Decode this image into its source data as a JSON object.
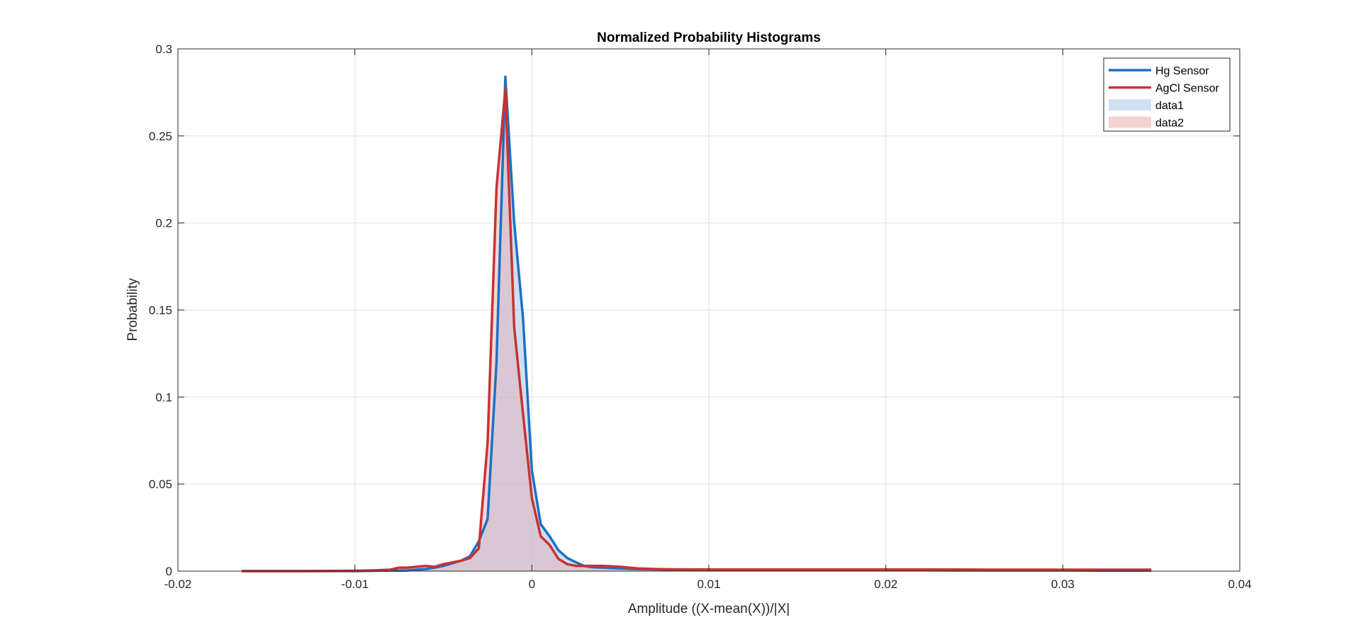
{
  "chart_data": {
    "type": "area",
    "title": "Normalized Probability Histograms",
    "xlabel": "Amplitude ((X-mean(X))/|X|",
    "ylabel": "Probability",
    "xlim": [
      -0.02,
      0.04
    ],
    "ylim": [
      0,
      0.3
    ],
    "xticks": [
      -0.02,
      -0.01,
      0,
      0.01,
      0.02,
      0.03,
      0.04
    ],
    "xtick_labels": [
      "-0.02",
      "-0.01",
      "0",
      "0.01",
      "0.02",
      "0.03",
      "0.04"
    ],
    "yticks": [
      0,
      0.05,
      0.1,
      0.15,
      0.2,
      0.25,
      0.3
    ],
    "ytick_labels": [
      "0",
      "0.05",
      "0.1",
      "0.15",
      "0.2",
      "0.25",
      "0.3"
    ],
    "grid": true,
    "legend_position": "top-right",
    "legend": [
      {
        "label": "Hg Sensor",
        "kind": "line",
        "color": "#1f6fc5"
      },
      {
        "label": "AgCl Sensor",
        "kind": "line",
        "color": "#c83232"
      },
      {
        "label": "data1",
        "kind": "patch",
        "color": "#cfe0f3"
      },
      {
        "label": "data2",
        "kind": "patch",
        "color": "#f3d2d2"
      }
    ],
    "series": [
      {
        "name": "Hg Sensor",
        "color": "#1f6fc5",
        "fill": "#9dbfe6",
        "x": [
          -0.0164,
          -0.013,
          -0.01,
          -0.009,
          -0.008,
          -0.0075,
          -0.007,
          -0.0065,
          -0.006,
          -0.0055,
          -0.005,
          -0.0045,
          -0.004,
          -0.0035,
          -0.003,
          -0.0025,
          -0.002,
          -0.0015,
          -0.001,
          -0.0005,
          0,
          0.0005,
          0.001,
          0.0015,
          0.002,
          0.0025,
          0.003,
          0.0035,
          0.004,
          0.005,
          0.006,
          0.007,
          0.008,
          0.01,
          0.012,
          0.014,
          0.016,
          0.018,
          0.02,
          0.022,
          0.024,
          0.026,
          0.028,
          0.03,
          0.032,
          0.034,
          0.035
        ],
        "y": [
          0,
          0,
          0,
          0.0002,
          0.0003,
          0.0003,
          0.0004,
          0.0008,
          0.0012,
          0.002,
          0.003,
          0.0045,
          0.006,
          0.0085,
          0.017,
          0.03,
          0.12,
          0.284,
          0.2,
          0.145,
          0.058,
          0.027,
          0.02,
          0.012,
          0.0075,
          0.005,
          0.0028,
          0.0022,
          0.002,
          0.0015,
          0.0012,
          0.001,
          0.0008,
          0.0007,
          0.0006,
          0.0006,
          0.0005,
          0.0005,
          0.0005,
          0.0005,
          0.0004,
          0.0004,
          0.0004,
          0.0004,
          0.0003,
          0.0003,
          0.0003
        ]
      },
      {
        "name": "AgCl Sensor",
        "color": "#c83232",
        "fill": "#e3b2b4",
        "x": [
          -0.0164,
          -0.013,
          -0.01,
          -0.009,
          -0.008,
          -0.0075,
          -0.007,
          -0.0065,
          -0.006,
          -0.0055,
          -0.005,
          -0.0045,
          -0.004,
          -0.0035,
          -0.003,
          -0.0025,
          -0.002,
          -0.0015,
          -0.001,
          -0.0005,
          0,
          0.0005,
          0.001,
          0.0015,
          0.002,
          0.0025,
          0.003,
          0.0035,
          0.004,
          0.005,
          0.006,
          0.007,
          0.008,
          0.01,
          0.012,
          0.014,
          0.016,
          0.018,
          0.02,
          0.022,
          0.024,
          0.026,
          0.028,
          0.03,
          0.032,
          0.034,
          0.035
        ],
        "y": [
          0,
          0,
          0.0002,
          0.0004,
          0.0008,
          0.002,
          0.002,
          0.0025,
          0.003,
          0.0025,
          0.004,
          0.005,
          0.006,
          0.0075,
          0.013,
          0.074,
          0.22,
          0.277,
          0.14,
          0.09,
          0.042,
          0.02,
          0.015,
          0.007,
          0.004,
          0.003,
          0.003,
          0.003,
          0.003,
          0.0025,
          0.0015,
          0.0012,
          0.001,
          0.0009,
          0.0009,
          0.0009,
          0.0009,
          0.0009,
          0.0009,
          0.0009,
          0.0009,
          0.0008,
          0.0008,
          0.0008,
          0.0008,
          0.0008,
          0.0008
        ]
      }
    ]
  }
}
